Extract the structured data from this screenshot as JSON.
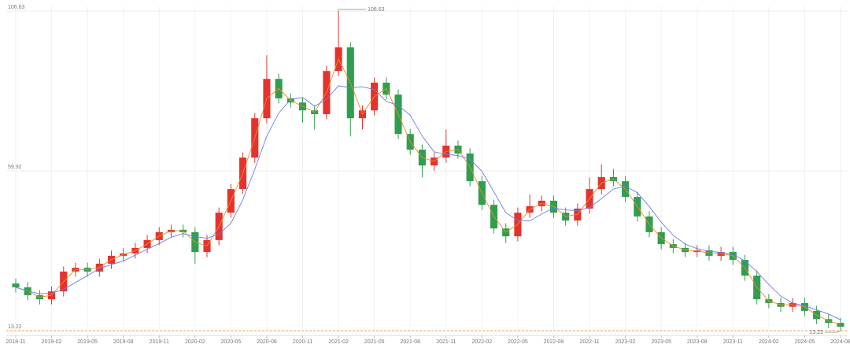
{
  "chart_data": {
    "type": "candlestick",
    "categories": [
      "2018-11",
      null,
      null,
      "2019-02",
      null,
      null,
      "2019-05",
      null,
      null,
      "2019-08",
      null,
      null,
      "2019-11",
      null,
      null,
      "2020-02",
      null,
      null,
      "2020-05",
      null,
      null,
      "2020-08",
      null,
      null,
      "2020-11",
      null,
      null,
      "2021-02",
      null,
      null,
      "2021-05",
      null,
      null,
      "2021-08",
      null,
      null,
      "2021-11",
      null,
      null,
      "2022-02",
      null,
      null,
      "2022-05",
      null,
      null,
      "2022-08",
      null,
      null,
      "2022-11",
      null,
      null,
      "2023-02",
      null,
      null,
      "2023-05",
      null,
      null,
      "2023-08",
      null,
      null,
      "2023-11",
      null,
      null,
      "2024-02",
      null,
      null,
      "2024-05",
      null,
      null,
      "2024-08"
    ],
    "open": [
      27.0,
      25.9,
      23.6,
      22.4,
      24.7,
      30.5,
      31.6,
      30.5,
      32.8,
      35.1,
      35.8,
      37.4,
      39.7,
      42.0,
      42.7,
      42.0,
      36.2,
      39.7,
      47.7,
      54.6,
      63.8,
      75.3,
      86.8,
      81.1,
      79.9,
      77.6,
      76.5,
      89.1,
      96.0,
      75.3,
      77.6,
      85.7,
      82.2,
      70.7,
      66.1,
      61.5,
      63.8,
      67.3,
      65.0,
      56.9,
      50.0,
      43.1,
      40.8,
      47.7,
      49.6,
      51.2,
      47.7,
      45.4,
      48.9,
      54.6,
      58.1,
      56.9,
      52.3,
      46.6,
      42.0,
      38.5,
      37.4,
      36.2,
      36.7,
      35.1,
      36.2,
      33.9,
      29.3,
      22.4,
      21.3,
      20.2,
      21.3,
      19.0,
      16.6,
      15.5
    ],
    "high": [
      28.5,
      27.4,
      25.1,
      26.2,
      32.0,
      33.1,
      33.1,
      34.3,
      36.6,
      37.3,
      38.9,
      41.2,
      43.5,
      44.2,
      44.2,
      43.5,
      41.2,
      49.2,
      56.1,
      65.3,
      76.8,
      93.7,
      88.3,
      82.6,
      81.4,
      79.1,
      90.6,
      106.63,
      97.5,
      79.1,
      87.2,
      87.2,
      83.7,
      72.2,
      67.6,
      65.3,
      72.0,
      68.8,
      66.5,
      58.4,
      51.5,
      44.6,
      49.2,
      53.0,
      52.7,
      52.7,
      49.2,
      50.4,
      58.0,
      61.8,
      60.5,
      58.4,
      53.8,
      48.1,
      43.5,
      40.0,
      38.9,
      38.2,
      38.2,
      37.7,
      37.7,
      35.4,
      30.8,
      23.9,
      22.8,
      22.8,
      22.8,
      20.5,
      18.1,
      17.0
    ],
    "low": [
      24.4,
      22.1,
      20.9,
      20.9,
      23.2,
      29.0,
      29.0,
      29.0,
      31.3,
      33.6,
      34.3,
      35.9,
      38.2,
      40.5,
      40.5,
      32.8,
      34.7,
      38.2,
      46.2,
      53.1,
      62.3,
      73.8,
      79.6,
      78.4,
      74.0,
      72.0,
      75.0,
      87.6,
      70.0,
      72.0,
      76.1,
      80.7,
      69.2,
      64.6,
      58.0,
      60.0,
      62.3,
      63.5,
      55.4,
      48.5,
      41.6,
      38.8,
      39.3,
      46.2,
      48.1,
      46.2,
      43.9,
      43.9,
      47.4,
      53.1,
      55.4,
      50.8,
      45.1,
      40.5,
      37.0,
      35.9,
      34.7,
      34.7,
      33.6,
      33.6,
      32.4,
      27.8,
      20.9,
      19.8,
      18.7,
      18.7,
      17.5,
      15.1,
      14.0,
      13.22
    ],
    "close": [
      25.9,
      23.6,
      22.4,
      24.7,
      30.5,
      31.6,
      30.5,
      32.8,
      35.1,
      35.8,
      37.4,
      39.7,
      42.0,
      42.7,
      42.0,
      36.2,
      39.7,
      47.7,
      54.6,
      63.8,
      75.3,
      86.8,
      81.1,
      79.9,
      77.6,
      76.5,
      89.1,
      96.0,
      75.3,
      77.6,
      85.7,
      82.2,
      70.7,
      66.1,
      61.5,
      63.8,
      67.3,
      65.0,
      56.9,
      50.0,
      43.1,
      40.8,
      47.7,
      49.6,
      51.2,
      47.7,
      45.4,
      48.9,
      54.6,
      58.1,
      56.9,
      52.3,
      46.6,
      42.0,
      38.5,
      37.4,
      36.2,
      36.7,
      35.1,
      36.2,
      33.9,
      29.3,
      22.4,
      21.3,
      20.2,
      21.3,
      19.0,
      16.6,
      15.5,
      14.4
    ],
    "up_color": "#e5322d",
    "down_color": "#2f9e4f",
    "series": [
      {
        "color": "#f08a2c",
        "values": [
          25.9,
          24.8,
          23.0,
          23.6,
          27.6,
          31.1,
          31.1,
          31.7,
          34.0,
          35.5,
          36.6,
          38.6,
          40.9,
          42.4,
          42.4,
          39.1,
          38.0,
          43.7,
          51.2,
          59.2,
          69.6,
          81.1,
          84.0,
          80.5,
          78.8,
          77.1,
          82.8,
          92.6,
          85.7,
          76.5,
          81.7,
          84.0,
          76.5,
          68.4,
          63.8,
          62.7,
          65.6,
          66.2,
          61.0,
          53.5,
          46.6,
          42.0,
          44.3,
          48.7,
          50.4,
          49.5,
          46.6,
          47.2,
          51.8,
          56.4,
          57.5,
          54.6,
          49.5,
          44.3,
          40.3,
          38.0,
          36.8,
          36.5,
          35.9,
          35.7,
          35.1,
          31.6,
          25.9,
          21.9,
          20.8,
          20.8,
          20.2,
          17.8,
          16.1,
          15.0
        ]
      },
      {
        "color": "#6a7ee6",
        "values": [
          25.9,
          24.8,
          24.0,
          24.2,
          25.3,
          27.3,
          29.3,
          31.4,
          32.5,
          33.6,
          35.3,
          37.0,
          38.7,
          40.5,
          41.6,
          40.7,
          40.2,
          41.4,
          44.6,
          51.5,
          60.4,
          70.1,
          76.8,
          80.8,
          81.4,
          78.8,
          80.8,
          84.8,
          84.2,
          84.5,
          83.7,
          80.2,
          79.1,
          76.2,
          70.1,
          65.5,
          64.7,
          64.4,
          63.3,
          59.8,
          53.8,
          47.7,
          45.4,
          45.3,
          47.3,
          49.1,
          48.5,
          48.3,
          49.2,
          51.8,
          54.6,
          55.5,
          53.5,
          49.5,
          44.9,
          41.1,
          38.5,
          37.2,
          36.4,
          36.1,
          35.5,
          33.6,
          30.5,
          26.7,
          23.3,
          21.3,
          20.5,
          19.3,
          18.1,
          16.4
        ]
      }
    ],
    "ylim": [
      13.22,
      106.63
    ],
    "yticks": [
      13.22,
      59.92,
      106.63
    ],
    "grid": true,
    "annotations": [
      {
        "value": 106.63,
        "x": "2021-02"
      },
      {
        "value": 13.22,
        "x": "2024-08"
      }
    ]
  }
}
